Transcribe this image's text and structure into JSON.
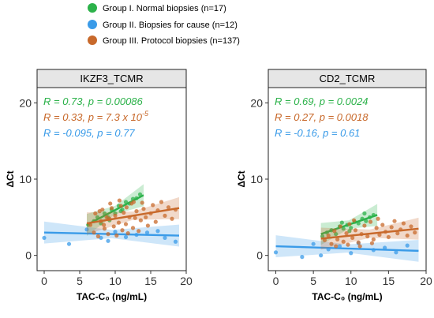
{
  "legend": [
    {
      "label": "Group I. Normal biopsies (n=17)",
      "color": "#2cb24a"
    },
    {
      "label": "Group II. Biopsies for cause (n=12)",
      "color": "#3a9be8"
    },
    {
      "label": "Group III. Protocol biopsies (n=137)",
      "color": "#c8692b"
    }
  ],
  "chart_data": [
    {
      "type": "scatter",
      "title": "IKZF3_TCMR",
      "xlabel": "TAC-C₀ (ng/mL)",
      "ylabel": "ΔCt",
      "xlim": [
        -1,
        20
      ],
      "ylim": [
        -2,
        22
      ],
      "xticks": [
        "0",
        "5",
        "10",
        "15",
        "20"
      ],
      "yticks": [
        "0",
        "10",
        "20"
      ],
      "annotations": [
        {
          "prefix": "R = 0.73, ",
          "suffix": "p = 0.00086",
          "color": "#2cb24a"
        },
        {
          "prefix": "R = 0.33, ",
          "suffix": "p = 7.3 x 10",
          "sup": "-5",
          "color": "#c8692b"
        },
        {
          "prefix": "R = -0.095, ",
          "suffix": "p = 0.77",
          "color": "#3a9be8"
        }
      ],
      "series": [
        {
          "color": "#2cb24a",
          "fit": [
            [
              6,
              4.0
            ],
            [
              14,
              7.9
            ]
          ],
          "points": [
            [
              6.2,
              4.0
            ],
            [
              7.0,
              4.5
            ],
            [
              7.5,
              5.0
            ],
            [
              8.0,
              4.2
            ],
            [
              8.5,
              5.5
            ],
            [
              9.0,
              5.0
            ],
            [
              9.5,
              6.0
            ],
            [
              10.0,
              5.5
            ],
            [
              10.5,
              6.5
            ],
            [
              11.0,
              6.0
            ],
            [
              11.5,
              7.0
            ],
            [
              12.0,
              6.8
            ],
            [
              12.5,
              7.4
            ],
            [
              13.0,
              7.5
            ],
            [
              13.5,
              8.0
            ],
            [
              9.2,
              4.6
            ],
            [
              10.8,
              5.8
            ]
          ]
        },
        {
          "color": "#3a9be8",
          "fit": [
            [
              0,
              3.0
            ],
            [
              19,
              2.6
            ]
          ],
          "points": [
            [
              0,
              2.3
            ],
            [
              3.5,
              1.5
            ],
            [
              6.0,
              3.4
            ],
            [
              8.0,
              2.3
            ],
            [
              9.0,
              1.9
            ],
            [
              10.0,
              3.1
            ],
            [
              11.5,
              2.4
            ],
            [
              13.0,
              2.7
            ],
            [
              14.5,
              3.0
            ],
            [
              17.0,
              2.3
            ],
            [
              18.5,
              1.8
            ],
            [
              16.0,
              3.2
            ]
          ]
        },
        {
          "color": "#c8692b",
          "fit": [
            [
              6,
              4.2
            ],
            [
              19,
              6.2
            ]
          ],
          "points": [
            [
              6.5,
              4.0
            ],
            [
              7.0,
              3.0
            ],
            [
              7.2,
              5.5
            ],
            [
              7.6,
              2.5
            ],
            [
              8.0,
              4.5
            ],
            [
              8.2,
              6.0
            ],
            [
              8.5,
              3.5
            ],
            [
              8.8,
              5.0
            ],
            [
              9.0,
              2.8
            ],
            [
              9.2,
              4.8
            ],
            [
              9.5,
              6.2
            ],
            [
              9.8,
              3.8
            ],
            [
              10.0,
              5.2
            ],
            [
              10.2,
              2.6
            ],
            [
              10.5,
              4.3
            ],
            [
              10.8,
              6.5
            ],
            [
              11.0,
              3.3
            ],
            [
              11.2,
              5.6
            ],
            [
              11.5,
              4.1
            ],
            [
              11.8,
              2.9
            ],
            [
              12.0,
              5.0
            ],
            [
              12.3,
              6.8
            ],
            [
              12.5,
              3.6
            ],
            [
              12.8,
              4.9
            ],
            [
              13.0,
              5.8
            ],
            [
              13.3,
              3.2
            ],
            [
              13.6,
              4.6
            ],
            [
              14.0,
              6.1
            ],
            [
              14.3,
              5.0
            ],
            [
              14.6,
              3.9
            ],
            [
              15.0,
              5.5
            ],
            [
              15.3,
              6.6
            ],
            [
              15.7,
              4.4
            ],
            [
              16.0,
              5.9
            ],
            [
              16.5,
              7.0
            ],
            [
              17.0,
              5.2
            ],
            [
              17.5,
              6.3
            ],
            [
              18.0,
              4.8
            ],
            [
              18.5,
              6.0
            ],
            [
              7.8,
              5.8
            ],
            [
              9.3,
              6.8
            ],
            [
              10.6,
              7.2
            ],
            [
              11.6,
              6.3
            ],
            [
              12.6,
              7.0
            ],
            [
              8.4,
              4.0
            ],
            [
              13.8,
              6.9
            ]
          ]
        }
      ]
    },
    {
      "type": "scatter",
      "title": "CD2_TCMR",
      "xlabel": "TAC-C₀ (ng/mL)",
      "ylabel": "ΔCt",
      "xlim": [
        -1,
        20
      ],
      "ylim": [
        -2,
        22
      ],
      "xticks": [
        "0",
        "5",
        "10",
        "15",
        "20"
      ],
      "yticks": [
        "0",
        "10",
        "20"
      ],
      "annotations": [
        {
          "prefix": "R = 0.69, ",
          "suffix": "p = 0.0024",
          "color": "#2cb24a"
        },
        {
          "prefix": "R = 0.27, ",
          "suffix": "p = 0.0018",
          "color": "#c8692b"
        },
        {
          "prefix": "R = -0.16, ",
          "suffix": "p = 0.61",
          "color": "#3a9be8"
        }
      ],
      "series": [
        {
          "color": "#2cb24a",
          "fit": [
            [
              6,
              2.8
            ],
            [
              13.5,
              5.3
            ]
          ],
          "points": [
            [
              6.2,
              2.5
            ],
            [
              6.8,
              3.0
            ],
            [
              7.4,
              3.3
            ],
            [
              8.0,
              2.8
            ],
            [
              8.5,
              3.8
            ],
            [
              9.0,
              3.5
            ],
            [
              9.5,
              4.0
            ],
            [
              10.0,
              3.6
            ],
            [
              10.5,
              4.4
            ],
            [
              11.0,
              4.2
            ],
            [
              11.5,
              4.8
            ],
            [
              12.0,
              4.5
            ],
            [
              12.5,
              5.0
            ],
            [
              13.0,
              5.3
            ],
            [
              9.8,
              3.2
            ],
            [
              8.8,
              4.3
            ],
            [
              11.8,
              5.5
            ]
          ]
        },
        {
          "color": "#3a9be8",
          "fit": [
            [
              0,
              1.2
            ],
            [
              19,
              0.6
            ]
          ],
          "points": [
            [
              0,
              0.4
            ],
            [
              3.5,
              -0.2
            ],
            [
              5.0,
              1.5
            ],
            [
              7.0,
              0.8
            ],
            [
              8.5,
              1.2
            ],
            [
              10.0,
              0.3
            ],
            [
              11.0,
              1.6
            ],
            [
              13.0,
              0.7
            ],
            [
              14.5,
              1.0
            ],
            [
              16.0,
              0.4
            ],
            [
              17.5,
              1.3
            ],
            [
              6.0,
              0.0
            ]
          ]
        },
        {
          "color": "#c8692b",
          "fit": [
            [
              6,
              2.2
            ],
            [
              19,
              3.5
            ]
          ],
          "points": [
            [
              6.5,
              2.0
            ],
            [
              7.0,
              2.6
            ],
            [
              7.4,
              1.5
            ],
            [
              7.8,
              3.2
            ],
            [
              8.2,
              2.1
            ],
            [
              8.6,
              3.8
            ],
            [
              9.0,
              1.8
            ],
            [
              9.4,
              2.9
            ],
            [
              9.8,
              4.1
            ],
            [
              10.2,
              2.3
            ],
            [
              10.6,
              3.3
            ],
            [
              11.0,
              1.7
            ],
            [
              11.4,
              2.8
            ],
            [
              11.8,
              3.9
            ],
            [
              12.2,
              2.5
            ],
            [
              12.6,
              4.4
            ],
            [
              13.0,
              2.1
            ],
            [
              13.4,
              3.6
            ],
            [
              13.8,
              2.7
            ],
            [
              14.2,
              4.0
            ],
            [
              14.6,
              3.1
            ],
            [
              15.0,
              2.4
            ],
            [
              15.4,
              3.7
            ],
            [
              15.8,
              4.5
            ],
            [
              16.2,
              2.9
            ],
            [
              16.6,
              3.4
            ],
            [
              17.0,
              4.2
            ],
            [
              17.5,
              2.6
            ],
            [
              18.0,
              3.8
            ],
            [
              18.5,
              3.0
            ],
            [
              8.0,
              1.2
            ],
            [
              9.6,
              1.4
            ],
            [
              11.2,
              1.2
            ],
            [
              12.8,
              1.6
            ],
            [
              10.4,
              4.6
            ],
            [
              13.6,
              4.8
            ]
          ]
        }
      ]
    }
  ]
}
